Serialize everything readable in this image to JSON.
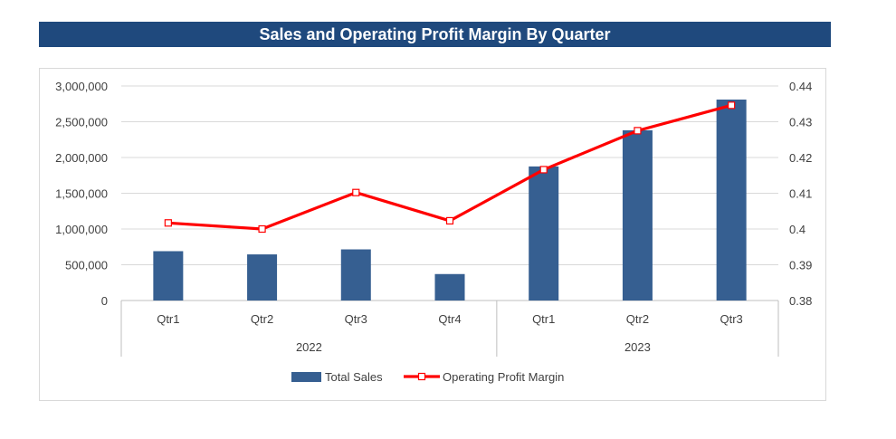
{
  "chart_data": {
    "type": "bar",
    "title": "Sales and Operating Profit Margin By Quarter",
    "groups": [
      {
        "label": "2022",
        "categories": [
          "Qtr1",
          "Qtr2",
          "Qtr3",
          "Qtr4"
        ]
      },
      {
        "label": "2023",
        "categories": [
          "Qtr1",
          "Qtr2",
          "Qtr3"
        ]
      }
    ],
    "series": [
      {
        "name": "Total Sales",
        "type": "bar",
        "axis": "left",
        "color": "#365f91",
        "values": [
          690000,
          645000,
          715000,
          370000,
          1875000,
          2380000,
          2810000
        ]
      },
      {
        "name": "Operating Profit Margin",
        "type": "line",
        "axis": "right",
        "color": "#ff0000",
        "marker": "square-hollow",
        "values": [
          0.4017,
          0.4,
          0.4102,
          0.4023,
          0.4166,
          0.4275,
          0.4346
        ]
      }
    ],
    "y_left": {
      "min": 0,
      "max": 3000000,
      "ticks": [
        "3,000,000",
        "2,500,000",
        "2,000,000",
        "1,500,000",
        "1,000,000",
        "500,000",
        "0"
      ]
    },
    "y_right": {
      "min": 0.38,
      "max": 0.44,
      "ticks": [
        "0.44",
        "0.43",
        "0.42",
        "0.41",
        "0.4",
        "0.39",
        "0.38"
      ]
    },
    "grid": true,
    "legend_position": "bottom"
  }
}
